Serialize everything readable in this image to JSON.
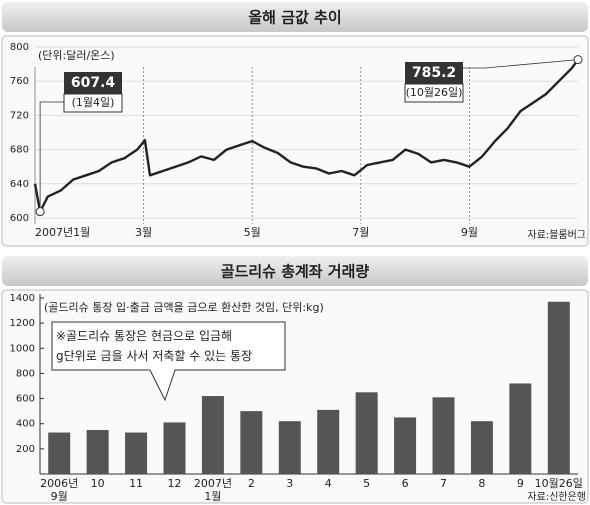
{
  "chart_data": [
    {
      "type": "line",
      "title": "올해 금값 추이",
      "unit_note": "(단위:달러/온스)",
      "source": "자료:블룸버그",
      "x": [
        0,
        0.4,
        1,
        2,
        3,
        4,
        5,
        6,
        7,
        8,
        8.6,
        9,
        10,
        11,
        12,
        13,
        14,
        15,
        16,
        17,
        18,
        19,
        20,
        21,
        22,
        23,
        24,
        25,
        26,
        27,
        28,
        29,
        30,
        31,
        32,
        33,
        34,
        35,
        36,
        37,
        38,
        39,
        40,
        41,
        42,
        42.5
      ],
      "values": [
        640,
        607.4,
        625,
        632,
        645,
        650,
        655,
        665,
        670,
        680,
        691,
        650,
        655,
        660,
        665,
        672,
        668,
        680,
        685,
        690,
        682,
        676,
        665,
        660,
        658,
        652,
        655,
        650,
        662,
        665,
        668,
        680,
        675,
        665,
        668,
        665,
        660,
        672,
        690,
        705,
        725,
        735,
        745,
        760,
        775,
        785.2
      ],
      "annotations": [
        "(1월4일)",
        "(10월26일)"
      ],
      "color": "#222222",
      "xlim": [
        0,
        42.5
      ],
      "xticks": [
        {
          "value": 0,
          "label": "2007년1월"
        },
        {
          "value": 8.5,
          "label": "3월"
        },
        {
          "value": 17,
          "label": "5월"
        },
        {
          "value": 25.5,
          "label": "7월"
        },
        {
          "value": 34,
          "label": "9월"
        }
      ],
      "ylim": [
        600,
        800
      ],
      "yticks": [
        600,
        640,
        680,
        720,
        760,
        800
      ],
      "grid": true
    },
    {
      "type": "bar",
      "title": "골드리슈 총계좌 거래량",
      "unit_note": "(골드리슈 통장 입·출금 금액을 금으로 환산한 것임, 단위:kg)",
      "note": "※골드리슈 통장은 현금으로 입금해\ng단위로 금을 사서 저축할 수 있는 통장",
      "source": "자료:신한은행",
      "categories": [
        "2006년\n9월",
        "10",
        "11",
        "12",
        "2007년\n1월",
        "2",
        "3",
        "4",
        "5",
        "6",
        "7",
        "8",
        "9",
        "10월26일"
      ],
      "values": [
        330,
        350,
        330,
        410,
        620,
        500,
        420,
        510,
        650,
        450,
        610,
        420,
        720,
        1370
      ],
      "color": "#555555",
      "ylim": [
        0,
        1400
      ],
      "yticks": [
        200,
        400,
        600,
        800,
        1000,
        1200,
        1400
      ],
      "grid": false
    }
  ]
}
